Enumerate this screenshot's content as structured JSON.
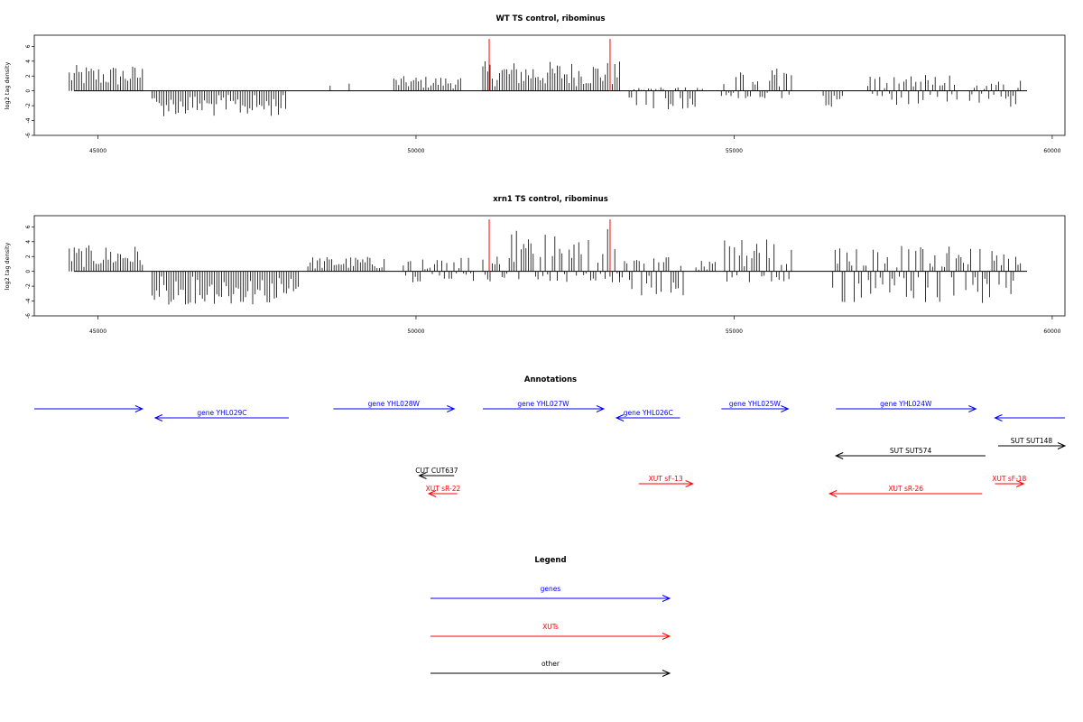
{
  "figure": {
    "background": "#ffffff"
  },
  "colors": {
    "genes": "#0000ff",
    "XUTs": "#ff0000",
    "other": "#000000",
    "bars": "#000000",
    "marker": "#ff0000"
  },
  "chart_data": [
    {
      "type": "bar",
      "title": "WT TS control, ribominus",
      "ylabel": "log2 tag density",
      "xlim": [
        44000,
        60200
      ],
      "ylim": [
        -6,
        7.5
      ],
      "xticks": [
        45000,
        50000,
        55000,
        60000
      ],
      "xtick_labels": [
        "45000",
        "50000",
        "55000",
        "60000"
      ],
      "yticks": [
        6,
        4,
        2,
        0,
        -2,
        -4,
        -6
      ],
      "ytick_labels": [
        "6",
        "4",
        "2",
        "0",
        "-2",
        "-4",
        "-6"
      ],
      "markers": [
        51150,
        53050
      ],
      "segments": [
        [
          44550,
          45700,
          3.5,
          0
        ],
        [
          45850,
          47950,
          0,
          -3.5
        ],
        [
          48650,
          48700,
          1,
          0
        ],
        [
          48950,
          49000,
          2,
          0
        ],
        [
          49650,
          50700,
          2,
          0
        ],
        [
          51050,
          53200,
          4,
          0
        ],
        [
          53350,
          54500,
          0.5,
          -2.5
        ],
        [
          54800,
          55900,
          3,
          -1
        ],
        [
          56400,
          56700,
          0,
          -3
        ],
        [
          57100,
          58500,
          2.2,
          -2
        ],
        [
          58700,
          59500,
          1.5,
          -2.5
        ]
      ]
    },
    {
      "type": "bar",
      "title": "xrn1 TS control, ribominus",
      "ylabel": "log2 tag density",
      "xlim": [
        44000,
        60200
      ],
      "ylim": [
        -6,
        7.5
      ],
      "xticks": [
        45000,
        50000,
        55000,
        60000
      ],
      "xtick_labels": [
        "45000",
        "50000",
        "55000",
        "60000"
      ],
      "yticks": [
        6,
        4,
        2,
        0,
        -2,
        -4,
        -6
      ],
      "ytick_labels": [
        "6",
        "4",
        "2",
        "0",
        "-2",
        "-4",
        "-6"
      ],
      "markers": [
        51150,
        53050
      ],
      "segments": [
        [
          44550,
          45700,
          3.5,
          0
        ],
        [
          45850,
          48150,
          0,
          -4.5
        ],
        [
          48300,
          49500,
          2,
          0
        ],
        [
          49800,
          50900,
          2,
          -1.5
        ],
        [
          51050,
          53200,
          6,
          -1.5
        ],
        [
          53200,
          54200,
          2,
          -3.5
        ],
        [
          54400,
          54700,
          1.5,
          0
        ],
        [
          54850,
          55900,
          4.5,
          -1.5
        ],
        [
          56550,
          59500,
          3.5,
          -4.5
        ]
      ]
    }
  ],
  "annotations": {
    "title": "Annotations",
    "xlim": [
      44000,
      60200
    ],
    "items": [
      {
        "label": "",
        "start": 44000,
        "end": 45700,
        "dir": 1,
        "color": "#0000ff",
        "row": 0
      },
      {
        "label": "gene YHL029C",
        "start": 45900,
        "end": 48000,
        "dir": -1,
        "color": "#0000ff",
        "row": 1
      },
      {
        "label": "gene YHL028W",
        "start": 48700,
        "end": 50600,
        "dir": 1,
        "color": "#0000ff",
        "row": 0
      },
      {
        "label": "gene YHL027W",
        "start": 51050,
        "end": 52950,
        "dir": 1,
        "color": "#0000ff",
        "row": 0
      },
      {
        "label": "gene YHL026C",
        "start": 53150,
        "end": 54150,
        "dir": -1,
        "color": "#0000ff",
        "row": 1
      },
      {
        "label": "gene YHL025W",
        "start": 54800,
        "end": 55850,
        "dir": 1,
        "color": "#0000ff",
        "row": 0
      },
      {
        "label": "gene YHL024W",
        "start": 56600,
        "end": 58800,
        "dir": 1,
        "color": "#0000ff",
        "row": 0
      },
      {
        "label": "",
        "start": 59100,
        "end": 60200,
        "dir": -1,
        "color": "#0000ff",
        "row": 1
      },
      {
        "label": "SUT SUT574",
        "start": 56600,
        "end": 58950,
        "dir": -1,
        "color": "#000000",
        "row": 2
      },
      {
        "label": "SUT SUT148",
        "start": 59150,
        "end": 60200,
        "dir": 1,
        "color": "#000000",
        "row": 3
      },
      {
        "label": "CUT CUT637",
        "start": 50050,
        "end": 50600,
        "dir": -1,
        "color": "#000000",
        "row": 4
      },
      {
        "label": "XUT sR-22",
        "start": 50200,
        "end": 50650,
        "dir": -1,
        "color": "#ff0000",
        "row": 5
      },
      {
        "label": "XUT sF-13",
        "start": 53500,
        "end": 54350,
        "dir": 1,
        "color": "#ff0000",
        "row": 6
      },
      {
        "label": "XUT sR-26",
        "start": 56500,
        "end": 58900,
        "dir": -1,
        "color": "#ff0000",
        "row": 5
      },
      {
        "label": "XUT sF-18",
        "start": 59100,
        "end": 59550,
        "dir": 1,
        "color": "#ff0000",
        "row": 6
      }
    ]
  },
  "legend": {
    "title": "Legend",
    "items": [
      {
        "label": "genes",
        "color": "#0000ff"
      },
      {
        "label": "XUTs",
        "color": "#ff0000"
      },
      {
        "label": "other",
        "color": "#000000"
      }
    ]
  }
}
